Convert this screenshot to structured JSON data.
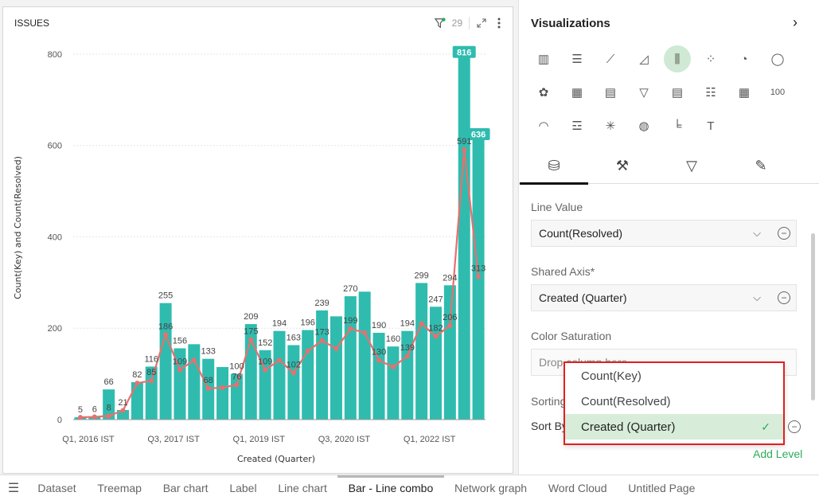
{
  "card": {
    "title": "ISSUES",
    "filter_count": "29",
    "icons": {
      "filter": "filter-icon",
      "expand": "expand-icon",
      "more": "more-vertical-icon"
    }
  },
  "chart_data": {
    "type": "bar-line-combo",
    "xlabel": "Created (Quarter)",
    "ylabel": "Count(Key) and Count(Resolved)",
    "ylim": [
      0,
      840
    ],
    "yticks": [
      0,
      200,
      400,
      600,
      800
    ],
    "xtick_labels": [
      {
        "index": 0,
        "label": "Q1, 2016 IST"
      },
      {
        "index": 6,
        "label": "Q3, 2017 IST"
      },
      {
        "index": 12,
        "label": "Q1, 2019 IST"
      },
      {
        "index": 18,
        "label": "Q3, 2020 IST"
      },
      {
        "index": 24,
        "label": "Q1, 2022 IST"
      }
    ],
    "bar_color": "#2fbcaf",
    "line_color": "#e8706e",
    "bar_values": [
      5,
      6,
      66,
      21,
      82,
      116,
      255,
      156,
      165,
      133,
      115,
      100,
      209,
      152,
      194,
      163,
      196,
      239,
      226,
      270,
      280,
      190,
      160,
      194,
      299,
      247,
      294,
      816,
      636
    ],
    "bar_labels": [
      "5",
      "6",
      "66",
      "21",
      "82",
      "116",
      "255",
      "156",
      "",
      "133",
      "",
      "100",
      "209",
      "152",
      "194",
      "163",
      "196",
      "239",
      "",
      "270",
      "",
      "190",
      "160",
      "194",
      "299",
      "247",
      "294",
      "816",
      "636"
    ],
    "line_values": [
      5,
      6,
      8,
      20,
      80,
      85,
      186,
      109,
      130,
      68,
      70,
      76,
      175,
      109,
      130,
      102,
      150,
      173,
      155,
      199,
      190,
      130,
      115,
      139,
      210,
      182,
      206,
      591,
      313
    ],
    "line_labels": [
      "",
      "",
      "8",
      "",
      "",
      "85",
      "186",
      "109",
      "",
      "68",
      "",
      "76",
      "175",
      "109",
      "",
      "102",
      "",
      "173",
      "",
      "199",
      "",
      "130",
      "",
      "139",
      "",
      "182",
      "206",
      "591",
      "313"
    ],
    "highlight_label_indices": [
      27,
      28
    ]
  },
  "panel": {
    "title": "Visualizations",
    "viz_icons": [
      {
        "name": "column-chart-icon",
        "glyph": "▥"
      },
      {
        "name": "bar-chart-icon",
        "glyph": "☰"
      },
      {
        "name": "line-chart-icon",
        "glyph": "⟋"
      },
      {
        "name": "area-chart-icon",
        "glyph": "◿"
      },
      {
        "name": "bar-line-combo-icon",
        "glyph": "⫼",
        "active": true
      },
      {
        "name": "scatter-plot-icon",
        "glyph": "⁘"
      },
      {
        "name": "pie-chart-icon",
        "glyph": "◔"
      },
      {
        "name": "donut-chart-icon",
        "glyph": "◯"
      },
      {
        "name": "sunburst-chart-icon",
        "glyph": "✿"
      },
      {
        "name": "treemap-icon",
        "glyph": "▦"
      },
      {
        "name": "pivot-table-icon",
        "glyph": "▤"
      },
      {
        "name": "funnel-chart-icon",
        "glyph": "▽"
      },
      {
        "name": "table-icon",
        "glyph": "▤"
      },
      {
        "name": "list-icon",
        "glyph": "☷"
      },
      {
        "name": "card-grid-icon",
        "glyph": "▦"
      },
      {
        "name": "kpi-number-icon",
        "glyph": "100",
        "text": true
      },
      {
        "name": "gauge-icon",
        "glyph": "◠"
      },
      {
        "name": "gantt-icon",
        "glyph": "☲"
      },
      {
        "name": "network-graph-icon",
        "glyph": "✳"
      },
      {
        "name": "map-globe-icon",
        "glyph": "◍"
      },
      {
        "name": "waterfall-chart-icon",
        "glyph": "╘"
      },
      {
        "name": "text-icon",
        "glyph": "T"
      }
    ],
    "tabs": [
      {
        "name": "tab-data",
        "icon": "database-gear-icon",
        "glyph": "⛁",
        "active": true
      },
      {
        "name": "tab-format",
        "icon": "paint-roller-icon",
        "glyph": "⚒"
      },
      {
        "name": "tab-filter",
        "icon": "filter-icon",
        "glyph": "▽"
      },
      {
        "name": "tab-conditional-format",
        "icon": "highlighter-icon",
        "glyph": "✎"
      }
    ],
    "line_value_label": "Line Value",
    "line_value": "Count(Resolved)",
    "shared_axis_label": "Shared Axis*",
    "shared_axis_value": "Created (Quarter)",
    "color_saturation_label": "Color Saturation",
    "color_saturation_placeholder": "Drop column here",
    "sorting_label": "Sorting",
    "sort_by_label": "Sort By",
    "add_level": "Add Level"
  },
  "dropdown": {
    "options": [
      {
        "label": "Count(Key)",
        "selected": false
      },
      {
        "label": "Count(Resolved)",
        "selected": false
      },
      {
        "label": "Created (Quarter)",
        "selected": true
      }
    ]
  },
  "bottom_tabs": {
    "items": [
      {
        "label": "Dataset"
      },
      {
        "label": "Treemap"
      },
      {
        "label": "Bar chart"
      },
      {
        "label": "Label"
      },
      {
        "label": "Line chart"
      },
      {
        "label": "Bar - Line combo",
        "active": true
      },
      {
        "label": "Network graph"
      },
      {
        "label": "Word Cloud"
      },
      {
        "label": "Untitled Page"
      }
    ]
  }
}
